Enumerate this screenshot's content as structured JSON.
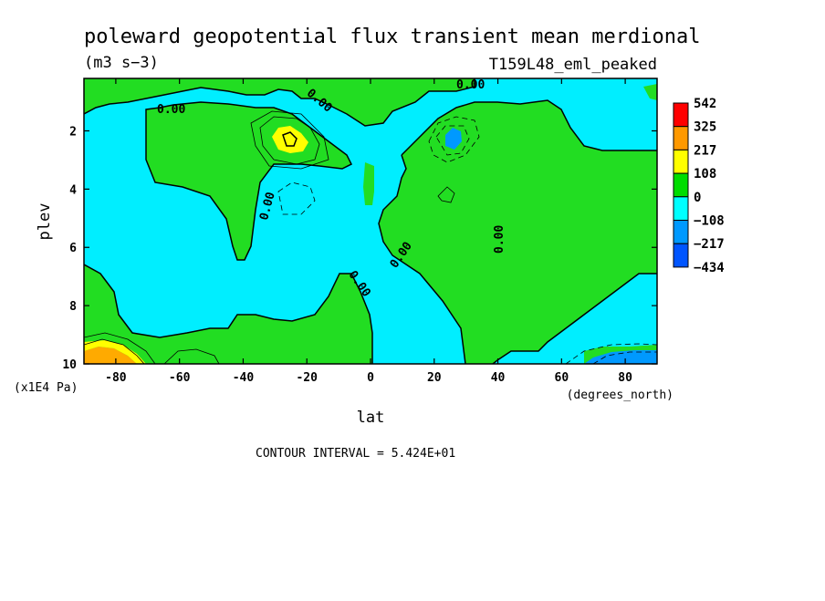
{
  "chart_data": {
    "type": "heatmap",
    "title": "poleward geopotential flux transient mean merdional",
    "units": "(m3 s−3)",
    "experiment": "T159L48_eml_peaked",
    "xlabel": "lat",
    "xunits": "(degrees_north)",
    "ylabel": "plev",
    "yunits": "(x1E4 Pa)",
    "xlim": [
      -90,
      90
    ],
    "ylim": [
      10,
      0.2
    ],
    "x_ticks": [
      {
        "value": -80,
        "label": "-80"
      },
      {
        "value": -60,
        "label": "-60"
      },
      {
        "value": -40,
        "label": "-40"
      },
      {
        "value": -20,
        "label": "-20"
      },
      {
        "value": 0,
        "label": "0"
      },
      {
        "value": 20,
        "label": "20"
      },
      {
        "value": 40,
        "label": "40"
      },
      {
        "value": 60,
        "label": "60"
      },
      {
        "value": 80,
        "label": "80"
      }
    ],
    "y_ticks": [
      {
        "value": 2,
        "label": "2"
      },
      {
        "value": 4,
        "label": "4"
      },
      {
        "value": 6,
        "label": "6"
      },
      {
        "value": 8,
        "label": "8"
      },
      {
        "value": 10,
        "label": "10"
      }
    ],
    "contour_interval_text": "CONTOUR INTERVAL = 5.424E+01",
    "contour_labels": [
      "0.00",
      "0.00",
      "0.00",
      "0.00",
      "0.00",
      "0.00",
      "0.00"
    ],
    "colorbar": {
      "levels": [
        "542",
        "325",
        "217",
        "108",
        "0",
        "−108",
        "−217",
        "−434"
      ],
      "colors": [
        "#ff0000",
        "#ff9900",
        "#ffff00",
        "#00dd00",
        "#00ffff",
        "#0099ff",
        "#0055ff"
      ]
    },
    "colors": {
      "positive": "#22dd22",
      "negative": "#00eeff",
      "yellow": "#ffff00",
      "orange": "#ffaa00",
      "blue_mid": "#0099ff"
    }
  }
}
